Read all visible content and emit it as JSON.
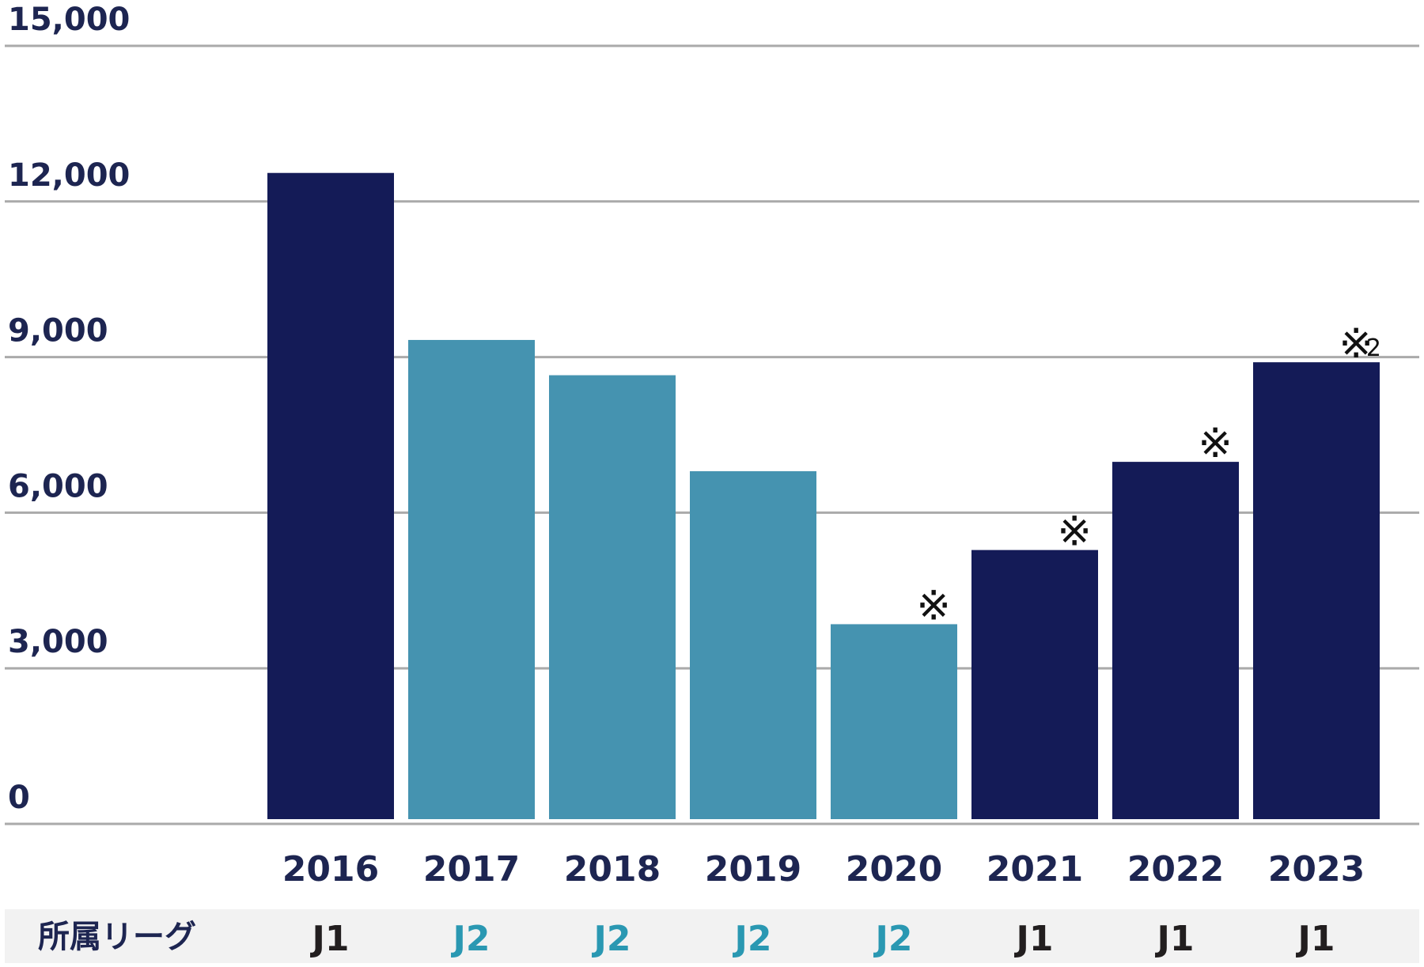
{
  "chart_data": {
    "type": "bar",
    "categories": [
      "2016",
      "2017",
      "2018",
      "2019",
      "2020",
      "2021",
      "2022",
      "2023"
    ],
    "values": [
      12550,
      9330,
      8650,
      6800,
      3850,
      5280,
      6980,
      8900
    ],
    "ylim": [
      0,
      15000
    ],
    "yticks": [
      "0",
      "3,000",
      "6,000",
      "9,000",
      "12,000",
      "15,000"
    ],
    "ytick_values": [
      0,
      3000,
      6000,
      9000,
      12000,
      15000
    ],
    "grid": true,
    "row_header": "所属リーグ",
    "leagues": [
      "J1",
      "J2",
      "J2",
      "J2",
      "J2",
      "J1",
      "J1",
      "J1"
    ],
    "notes": [
      "",
      "",
      "",
      "",
      "※",
      "※",
      "※",
      "※"
    ],
    "note_subscripts": [
      "",
      "",
      "",
      "",
      "",
      "",
      "",
      "2"
    ],
    "colors": {
      "J1": "#141b57",
      "J2": "#4593b0",
      "J1_text": "#221e1f",
      "J2_text": "#2a98b2",
      "axis_text": "#1d2551",
      "grid": "#aaaaaa",
      "row_bg": "#f2f2f2"
    }
  }
}
